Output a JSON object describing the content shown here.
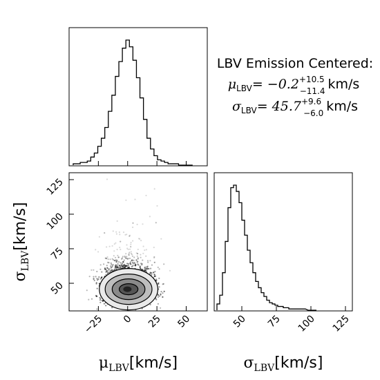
{
  "annotation": {
    "title": "LBV Emission Centered:",
    "mu_label": "μ",
    "mu_sub": "LBV",
    "mu_value": "= −0.2",
    "mu_plus": "+10.5",
    "mu_minus": "−11.4",
    "mu_unit": "km/s",
    "sigma_label": "σ",
    "sigma_sub": "LBV",
    "sigma_value": "= 45.7",
    "sigma_plus": "+9.6",
    "sigma_minus": "−6.0",
    "sigma_unit": "km/s"
  },
  "chart_data": [
    {
      "type": "histogram",
      "variable": "mu_LBV",
      "xlim": [
        -50,
        68
      ],
      "x_ticks": [],
      "bins_x": [
        -45,
        -42,
        -39,
        -36,
        -33,
        -30,
        -27,
        -24,
        -21,
        -18,
        -15,
        -12,
        -9,
        -6,
        -3,
        0,
        3,
        6,
        9,
        12,
        15,
        18,
        21,
        24,
        27,
        30,
        33,
        36,
        39,
        42,
        45,
        48,
        51,
        54
      ],
      "counts": [
        0.01,
        0.01,
        0.02,
        0.02,
        0.03,
        0.06,
        0.09,
        0.14,
        0.2,
        0.28,
        0.4,
        0.52,
        0.66,
        0.77,
        0.87,
        0.93,
        0.88,
        0.78,
        0.65,
        0.5,
        0.34,
        0.2,
        0.12,
        0.07,
        0.04,
        0.03,
        0.02,
        0.01,
        0.01,
        0.01,
        0,
        0,
        0,
        0
      ]
    },
    {
      "type": "scatter",
      "xvar": "mu_LBV",
      "yvar": "sigma_LBV",
      "xlim": [
        -50,
        68
      ],
      "ylim": [
        30,
        130
      ],
      "x_ticks": [
        "−25",
        "0",
        "25",
        "50"
      ],
      "x_tick_values": [
        -25,
        0,
        25,
        50
      ],
      "y_ticks": [
        "50",
        "75",
        "100",
        "125"
      ],
      "y_tick_values": [
        50,
        75,
        100,
        125
      ],
      "xlabel_symbol": "μ",
      "xlabel_sub": "LBV",
      "xlabel_unit": "[km/s]",
      "ylabel_symbol": "σ",
      "ylabel_sub": "LBV",
      "ylabel_unit": "[km/s]",
      "center": [
        -0.2,
        45.7
      ],
      "contours": [
        {
          "rx": 8,
          "ry": 4,
          "fill": "#555555"
        },
        {
          "rx": 14,
          "ry": 7.5,
          "fill": "#8a8a8a"
        },
        {
          "rx": 20,
          "ry": 11,
          "fill": "#bdbdbd"
        },
        {
          "rx": 25,
          "ry": 15,
          "fill": "#eaeaea"
        }
      ]
    },
    {
      "type": "histogram",
      "variable": "sigma_LBV",
      "xlim": [
        30,
        130
      ],
      "x_ticks": [
        "50",
        "75",
        "100",
        "125"
      ],
      "x_tick_values": [
        50,
        75,
        100,
        125
      ],
      "xlabel_symbol": "σ",
      "xlabel_sub": "LBV",
      "xlabel_unit": "[km/s]",
      "bins_x": [
        33,
        35,
        37,
        39,
        41,
        43,
        45,
        47,
        49,
        51,
        53,
        55,
        57,
        59,
        61,
        63,
        65,
        67,
        69,
        71,
        73,
        75,
        77,
        79,
        81,
        83,
        85,
        87,
        89,
        91,
        95,
        99,
        103
      ],
      "counts": [
        0.05,
        0.12,
        0.3,
        0.55,
        0.82,
        0.98,
        1.0,
        0.95,
        0.86,
        0.72,
        0.6,
        0.48,
        0.38,
        0.3,
        0.23,
        0.18,
        0.14,
        0.11,
        0.08,
        0.06,
        0.05,
        0.04,
        0.03,
        0.03,
        0.02,
        0.02,
        0.01,
        0.01,
        0.01,
        0.01,
        0.01,
        0,
        0
      ]
    }
  ]
}
